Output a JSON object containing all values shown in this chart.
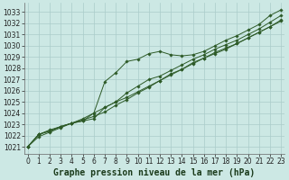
{
  "title": "Graphe pression niveau de la mer (hPa)",
  "background_color": "#cce8e4",
  "grid_color": "#aaccca",
  "line_color": "#2d5a27",
  "marker_color": "#2d5a27",
  "x_ticks": [
    0,
    1,
    2,
    3,
    4,
    5,
    6,
    7,
    8,
    9,
    10,
    11,
    12,
    13,
    14,
    15,
    16,
    17,
    18,
    19,
    20,
    21,
    22,
    23
  ],
  "y_ticks": [
    1021,
    1022,
    1023,
    1024,
    1025,
    1026,
    1027,
    1028,
    1029,
    1030,
    1031,
    1032,
    1033
  ],
  "ylim": [
    1020.4,
    1033.8
  ],
  "xlim": [
    -0.3,
    23.3
  ],
  "series1": [
    1021.0,
    1022.1,
    1022.4,
    1022.8,
    1023.1,
    1023.3,
    1024.0,
    1026.8,
    1027.6,
    1028.6,
    1028.8,
    1029.3,
    1029.5,
    1029.2,
    1029.1,
    1029.2,
    1029.5,
    1030.0,
    1030.5,
    1030.9,
    1031.4,
    1031.9,
    1032.7,
    1033.2
  ],
  "series2": [
    1021.0,
    1022.1,
    1022.4,
    1022.8,
    1023.1,
    1023.3,
    1023.5,
    1024.5,
    1025.0,
    1025.8,
    1026.4,
    1027.0,
    1027.3,
    1027.8,
    1028.3,
    1028.8,
    1029.2,
    1029.7,
    1030.1,
    1030.5,
    1031.0,
    1031.5,
    1032.1,
    1032.7
  ],
  "series3": [
    1021.0,
    1022.1,
    1022.5,
    1022.8,
    1023.1,
    1023.4,
    1023.7,
    1024.1,
    1024.7,
    1025.2,
    1025.8,
    1026.3,
    1026.9,
    1027.5,
    1027.9,
    1028.5,
    1028.9,
    1029.4,
    1029.8,
    1030.2,
    1030.7,
    1031.2,
    1031.7,
    1032.3
  ],
  "series4": [
    1021.0,
    1021.9,
    1022.3,
    1022.7,
    1023.1,
    1023.5,
    1024.0,
    1024.5,
    1025.0,
    1025.4,
    1025.9,
    1026.4,
    1026.9,
    1027.4,
    1027.9,
    1028.4,
    1028.9,
    1029.3,
    1029.7,
    1030.2,
    1030.7,
    1031.2,
    1031.7,
    1032.2
  ],
  "title_fontsize": 7.0,
  "tick_fontsize": 5.5
}
